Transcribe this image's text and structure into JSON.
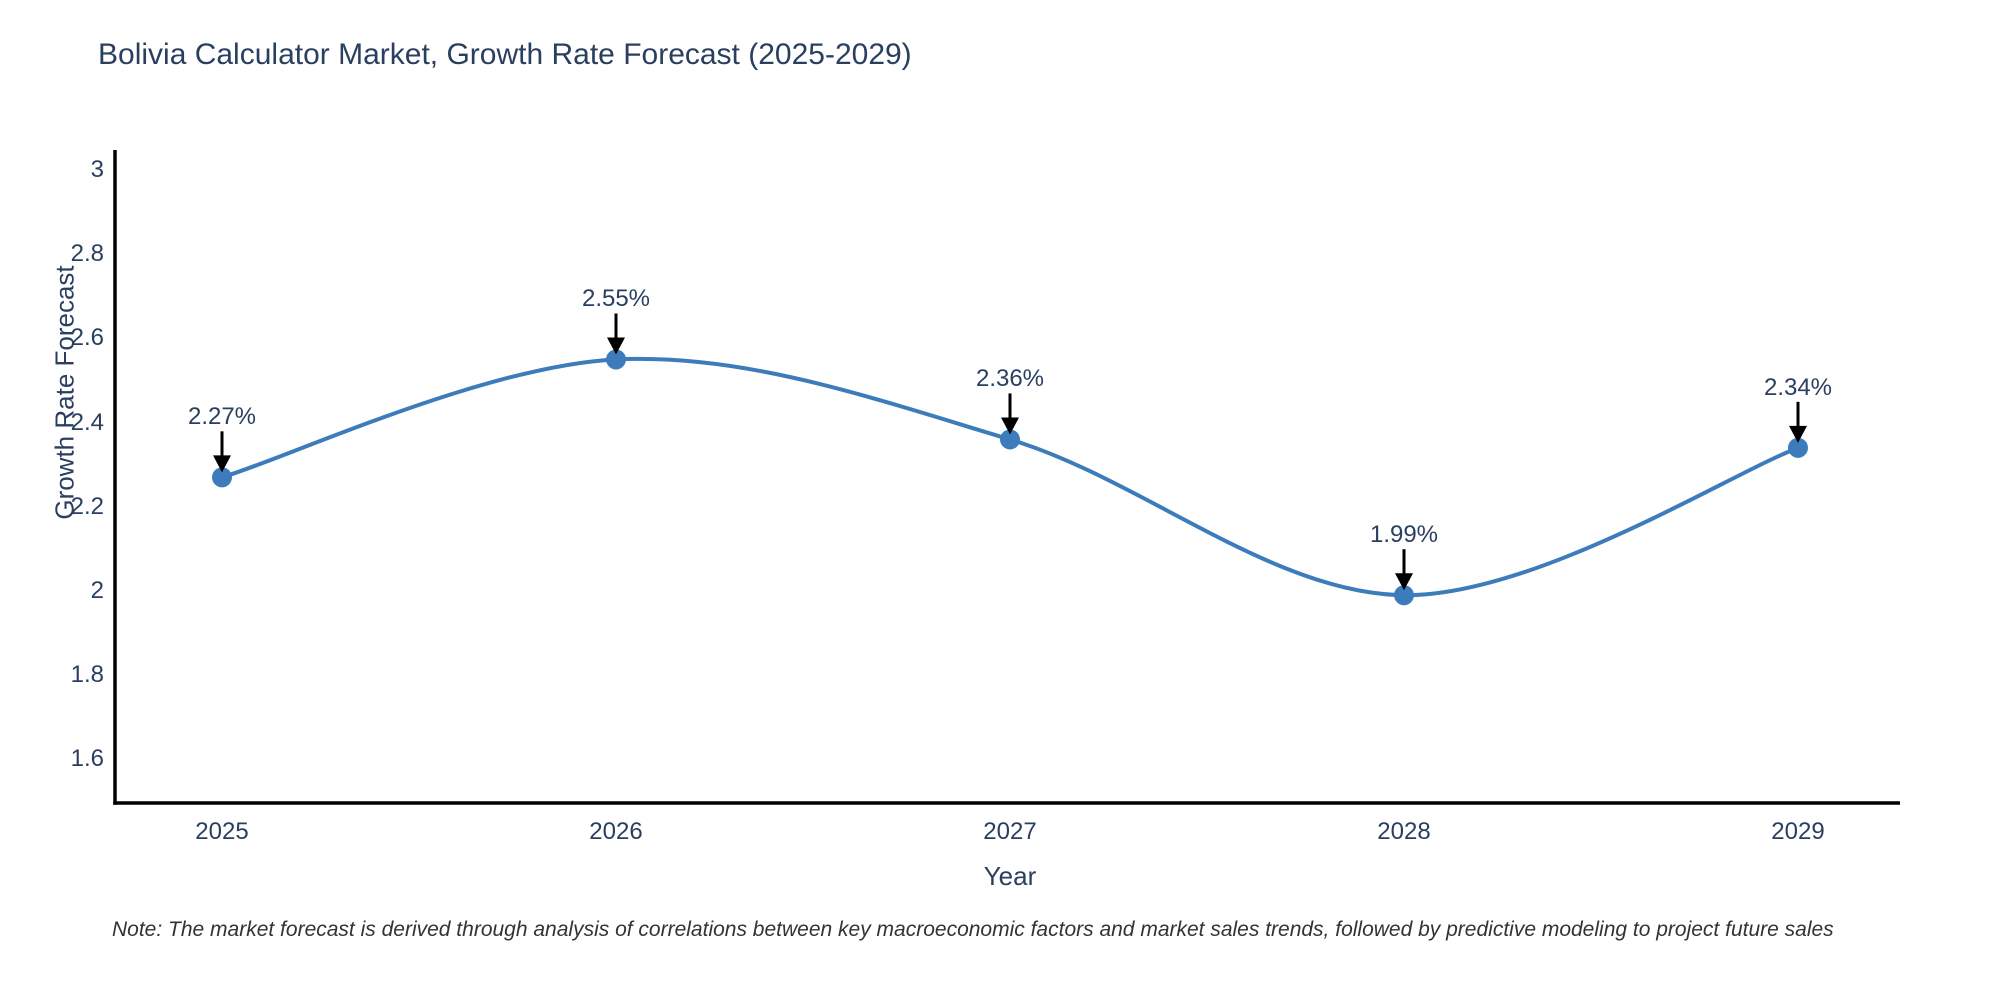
{
  "title": "Bolivia Calculator Market, Growth Rate Forecast (2025-2029)",
  "note": "Note: The market forecast is derived through analysis of correlations between key macroeconomic factors and market sales trends, followed by predictive modeling to project future sales",
  "colors": {
    "line": "#3d7cbb",
    "marker": "#3d7cbb",
    "axis": "#000000",
    "arrow": "#000000",
    "text": "#2a3f5f",
    "note_text": "#333333",
    "background": "#ffffff"
  },
  "chart_data": {
    "type": "line",
    "title": "Bolivia Calculator Market, Growth Rate Forecast (2025-2029)",
    "xlabel": "Year",
    "ylabel": "Growth Rate Forecast",
    "x": [
      2025,
      2026,
      2027,
      2028,
      2029
    ],
    "values": [
      2.27,
      2.55,
      2.36,
      1.99,
      2.34
    ],
    "point_labels": [
      "2.27%",
      "2.55%",
      "2.36%",
      "1.99%",
      "2.34%"
    ],
    "y_ticks": [
      3,
      2.8,
      2.6,
      2.4,
      2.2,
      2,
      1.8,
      1.6
    ],
    "ylim": [
      1.49,
      3.05
    ],
    "line_shape": "spline",
    "grid": false,
    "legend": "none",
    "marker": "circle",
    "annotation_arrows": true
  }
}
